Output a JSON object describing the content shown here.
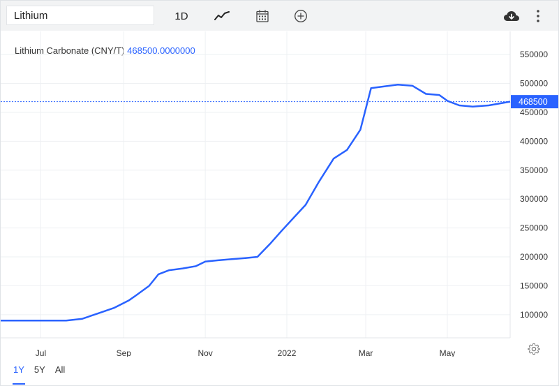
{
  "toolbar": {
    "search_value": "Lithium",
    "interval_label": "1D",
    "icons": [
      "line-chart-icon",
      "calendar-icon",
      "add-circle-icon",
      "download-cloud-icon",
      "more-vertical-icon"
    ]
  },
  "legend": {
    "name": "Lithium Carbonate (CNY/T)",
    "value": "468500.0000000"
  },
  "range_tabs": [
    "1Y",
    "5Y",
    "All"
  ],
  "active_range": "1Y",
  "colors": {
    "line": "#2962ff",
    "price_tag_bg": "#2962ff",
    "grid": "#eef0f3"
  },
  "chart_data": {
    "type": "line",
    "title": "Lithium Carbonate (CNY/T)",
    "xlabel": "",
    "ylabel": "",
    "x_tick_labels": [
      "Jul",
      "Sep",
      "Nov",
      "2022",
      "Mar",
      "May"
    ],
    "y_tick_labels": [
      "100000",
      "150000",
      "200000",
      "250000",
      "300000",
      "350000",
      "400000",
      "450000",
      "500000",
      "550000"
    ],
    "ylim": [
      60000,
      590000
    ],
    "xlim": [
      "2021-06-01",
      "2022-06-17"
    ],
    "grid": true,
    "legend_position": "top-left",
    "last_value_label": "468500",
    "series": [
      {
        "name": "Lithium Carbonate (CNY/T)",
        "x": [
          "2021-06-01",
          "2021-07-20",
          "2021-08-01",
          "2021-08-15",
          "2021-08-25",
          "2021-09-05",
          "2021-09-10",
          "2021-09-20",
          "2021-09-27",
          "2021-10-05",
          "2021-10-15",
          "2021-10-25",
          "2021-11-01",
          "2021-11-10",
          "2021-11-20",
          "2021-12-01",
          "2021-12-10",
          "2021-12-20",
          "2021-12-28",
          "2022-01-07",
          "2022-01-15",
          "2022-01-25",
          "2022-02-05",
          "2022-02-15",
          "2022-02-25",
          "2022-03-05",
          "2022-03-15",
          "2022-03-25",
          "2022-04-05",
          "2022-04-15",
          "2022-04-25",
          "2022-05-01",
          "2022-05-10",
          "2022-05-20",
          "2022-06-01",
          "2022-06-17"
        ],
        "values": [
          90000,
          90000,
          93000,
          104000,
          112000,
          125000,
          133000,
          150000,
          170000,
          177000,
          180000,
          184000,
          192000,
          194000,
          196000,
          198000,
          200000,
          224000,
          245000,
          270000,
          290000,
          330000,
          370000,
          385000,
          420000,
          492000,
          495000,
          498000,
          496000,
          482000,
          480000,
          470000,
          462000,
          460000,
          462000,
          468500
        ]
      }
    ]
  }
}
